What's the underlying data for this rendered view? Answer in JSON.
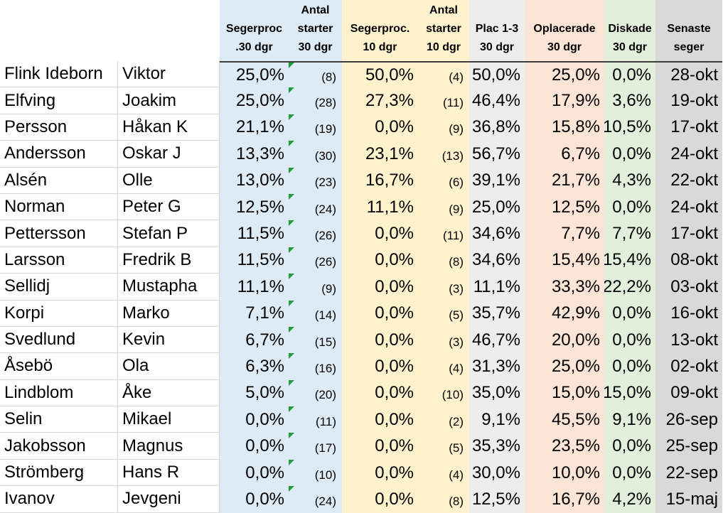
{
  "headers": {
    "win30": [
      "Segerproc",
      ".30 dgr"
    ],
    "starts30": [
      "Antal",
      "starter",
      "30 dgr"
    ],
    "win10": [
      "Segerproc.",
      "10 dgr"
    ],
    "starts10": [
      "Antal",
      "starter",
      "10 dgr"
    ],
    "plac": [
      "Plac 1-3",
      "30 dgr"
    ],
    "unplaced": [
      "Oplacerade",
      "30 dgr"
    ],
    "dq": [
      "Diskade",
      "30 dgr"
    ],
    "last": [
      "Senaste",
      "seger"
    ]
  },
  "column_colors": {
    "win30": "#ddebf7",
    "win10": "#fff2cc",
    "plac": "#ededed",
    "unplaced": "#fce4d6",
    "dq": "#e2efda",
    "last": "#d9d9d9"
  },
  "rows": [
    {
      "last_name": "Flink Ideborn",
      "first_name": "Viktor",
      "win30": "25,0%",
      "starts30": "(8)",
      "win10": "50,0%",
      "starts10": "(4)",
      "plac": "50,0%",
      "unplaced": "25,0%",
      "dq": "0,0%",
      "last_win": "28-okt"
    },
    {
      "last_name": "Elfving",
      "first_name": "Joakim",
      "win30": "25,0%",
      "starts30": "(28)",
      "win10": "27,3%",
      "starts10": "(11)",
      "plac": "46,4%",
      "unplaced": "17,9%",
      "dq": "3,6%",
      "last_win": "19-okt"
    },
    {
      "last_name": "Persson",
      "first_name": "Håkan K",
      "win30": "21,1%",
      "starts30": "(19)",
      "win10": "0,0%",
      "starts10": "(9)",
      "plac": "36,8%",
      "unplaced": "15,8%",
      "dq": "10,5%",
      "last_win": "17-okt"
    },
    {
      "last_name": "Andersson",
      "first_name": "Oskar J",
      "win30": "13,3%",
      "starts30": "(30)",
      "win10": "23,1%",
      "starts10": "(13)",
      "plac": "56,7%",
      "unplaced": "6,7%",
      "dq": "0,0%",
      "last_win": "24-okt"
    },
    {
      "last_name": "Alsén",
      "first_name": "Olle",
      "win30": "13,0%",
      "starts30": "(23)",
      "win10": "16,7%",
      "starts10": "(6)",
      "plac": "39,1%",
      "unplaced": "21,7%",
      "dq": "4,3%",
      "last_win": "22-okt"
    },
    {
      "last_name": "Norman",
      "first_name": "Peter G",
      "win30": "12,5%",
      "starts30": "(24)",
      "win10": "11,1%",
      "starts10": "(9)",
      "plac": "25,0%",
      "unplaced": "12,5%",
      "dq": "0,0%",
      "last_win": "24-okt"
    },
    {
      "last_name": "Pettersson",
      "first_name": "Stefan P",
      "win30": "11,5%",
      "starts30": "(26)",
      "win10": "0,0%",
      "starts10": "(11)",
      "plac": "34,6%",
      "unplaced": "7,7%",
      "dq": "7,7%",
      "last_win": "17-okt"
    },
    {
      "last_name": "Larsson",
      "first_name": "Fredrik B",
      "win30": "11,5%",
      "starts30": "(26)",
      "win10": "0,0%",
      "starts10": "(8)",
      "plac": "34,6%",
      "unplaced": "15,4%",
      "dq": "15,4%",
      "last_win": "08-okt"
    },
    {
      "last_name": "Sellidj",
      "first_name": "Mustapha",
      "win30": "11,1%",
      "starts30": "(9)",
      "win10": "0,0%",
      "starts10": "(3)",
      "plac": "11,1%",
      "unplaced": "33,3%",
      "dq": "22,2%",
      "last_win": "03-okt"
    },
    {
      "last_name": "Korpi",
      "first_name": "Marko",
      "win30": "7,1%",
      "starts30": "(14)",
      "win10": "0,0%",
      "starts10": "(5)",
      "plac": "35,7%",
      "unplaced": "42,9%",
      "dq": "0,0%",
      "last_win": "16-okt"
    },
    {
      "last_name": "Svedlund",
      "first_name": "Kevin",
      "win30": "6,7%",
      "starts30": "(15)",
      "win10": "0,0%",
      "starts10": "(3)",
      "plac": "46,7%",
      "unplaced": "20,0%",
      "dq": "0,0%",
      "last_win": "13-okt"
    },
    {
      "last_name": "Åsebö",
      "first_name": "Ola",
      "win30": "6,3%",
      "starts30": "(16)",
      "win10": "0,0%",
      "starts10": "(4)",
      "plac": "31,3%",
      "unplaced": "25,0%",
      "dq": "0,0%",
      "last_win": "02-okt"
    },
    {
      "last_name": "Lindblom",
      "first_name": "Åke",
      "win30": "5,0%",
      "starts30": "(20)",
      "win10": "0,0%",
      "starts10": "(10)",
      "plac": "35,0%",
      "unplaced": "15,0%",
      "dq": "15,0%",
      "last_win": "09-okt"
    },
    {
      "last_name": "Selin",
      "first_name": "Mikael",
      "win30": "0,0%",
      "starts30": "(11)",
      "win10": "0,0%",
      "starts10": "(2)",
      "plac": "9,1%",
      "unplaced": "45,5%",
      "dq": "9,1%",
      "last_win": "26-sep"
    },
    {
      "last_name": "Jakobsson",
      "first_name": "Magnus",
      "win30": "0,0%",
      "starts30": "(17)",
      "win10": "0,0%",
      "starts10": "(5)",
      "plac": "35,3%",
      "unplaced": "23,5%",
      "dq": "0,0%",
      "last_win": "25-sep"
    },
    {
      "last_name": "Strömberg",
      "first_name": "Hans R",
      "win30": "0,0%",
      "starts30": "(10)",
      "win10": "0,0%",
      "starts10": "(4)",
      "plac": "30,0%",
      "unplaced": "10,0%",
      "dq": "0,0%",
      "last_win": "22-sep"
    },
    {
      "last_name": "Ivanov",
      "first_name": "Jevgeni",
      "win30": "0,0%",
      "starts30": "(24)",
      "win10": "0,0%",
      "starts10": "(8)",
      "plac": "12,5%",
      "unplaced": "16,7%",
      "dq": "4,2%",
      "last_win": "15-maj"
    }
  ]
}
